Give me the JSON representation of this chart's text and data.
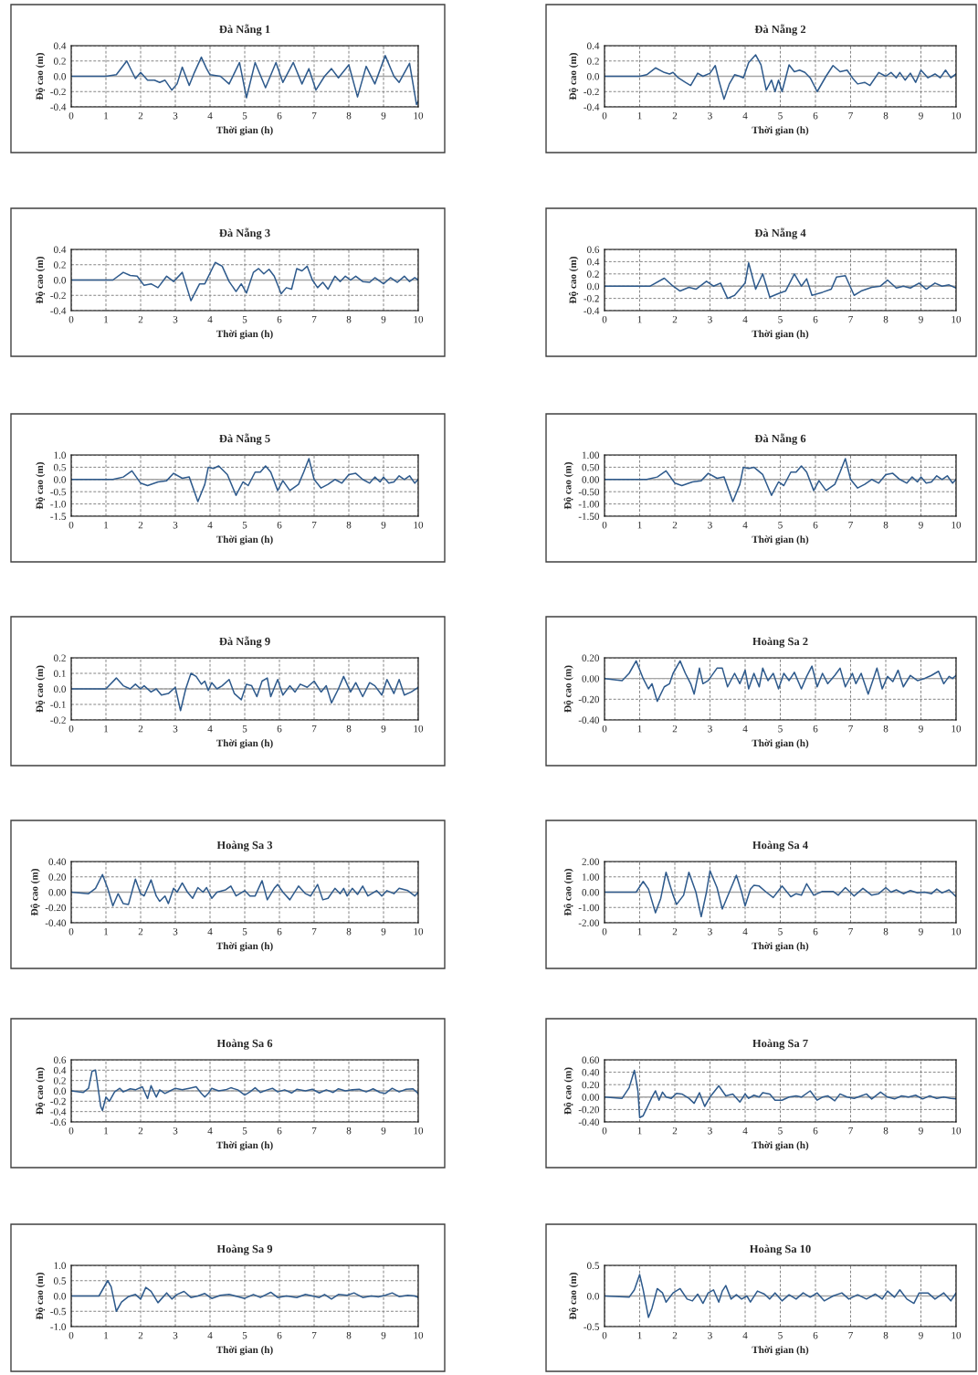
{
  "chart_data": [
    {
      "type": "line",
      "title": "Đà Nẵng 1",
      "xlabel": "Thời gian (h)",
      "ylabel": "Độ cao (m)",
      "xlim": [
        0,
        10
      ],
      "xticks": [
        0,
        1,
        2,
        3,
        4,
        5,
        6,
        7,
        8,
        9,
        10
      ],
      "ylim": [
        -0.4,
        0.4
      ],
      "yticks": [
        -0.4,
        -0.2,
        {
          "value": 0,
          "label": "0.0"
        },
        0.2,
        0.4
      ],
      "grid": true,
      "ref_lines": [
        {
          "axis": "y",
          "value": 0,
          "color": "#a6a6a6"
        }
      ],
      "series": [
        {
          "color": "#2e5a8c",
          "x": [
            0,
            1,
            1.3,
            1.6,
            1.85,
            2.0,
            2.2,
            2.4,
            2.55,
            2.7,
            2.9,
            3.05,
            3.2,
            3.4,
            3.55,
            3.75,
            3.9,
            4.0,
            4.3,
            4.55,
            4.85,
            5.05,
            5.3,
            5.6,
            5.9,
            6.1,
            6.4,
            6.65,
            6.85,
            7.05,
            7.3,
            7.5,
            7.7,
            8.0,
            8.25,
            8.5,
            8.75,
            9.05,
            9.3,
            9.45,
            9.75,
            9.95,
            10
          ],
          "values": [
            0,
            0,
            0.02,
            0.2,
            -0.03,
            0.05,
            -0.05,
            -0.05,
            -0.08,
            -0.05,
            -0.18,
            -0.1,
            0.12,
            -0.12,
            0.05,
            0.25,
            0.1,
            0.02,
            0.0,
            -0.1,
            0.18,
            -0.28,
            0.18,
            -0.15,
            0.18,
            -0.08,
            0.18,
            -0.1,
            0.1,
            -0.18,
            0.0,
            0.1,
            -0.02,
            0.15,
            -0.27,
            0.13,
            -0.1,
            0.27,
            0.0,
            -0.08,
            0.17,
            -0.37,
            -0.33
          ]
        }
      ]
    },
    {
      "type": "line",
      "title": "Đà Nẵng 2",
      "xlabel": "Thời gian (h)",
      "ylabel": "Độ cao (m)",
      "xlim": [
        0,
        10
      ],
      "xticks": [
        0,
        1,
        2,
        3,
        4,
        5,
        6,
        7,
        8,
        9,
        10
      ],
      "ylim": [
        -0.4,
        0.4
      ],
      "yticks": [
        -0.4,
        -0.2,
        {
          "value": 0,
          "label": "0.0"
        },
        0.2,
        0.4
      ],
      "grid": true,
      "ref_lines": [
        {
          "axis": "y",
          "value": 0,
          "color": "#a6a6a6"
        }
      ],
      "series": [
        {
          "color": "#2e5a8c",
          "x": [
            0,
            1,
            1.2,
            1.45,
            1.7,
            1.85,
            1.95,
            2.1,
            2.3,
            2.45,
            2.65,
            2.8,
            3.0,
            3.15,
            3.25,
            3.4,
            3.55,
            3.7,
            3.85,
            3.95,
            4.1,
            4.3,
            4.45,
            4.6,
            4.75,
            4.85,
            4.95,
            5.05,
            5.25,
            5.4,
            5.55,
            5.7,
            5.85,
            6.05,
            6.3,
            6.5,
            6.7,
            6.9,
            7.05,
            7.2,
            7.4,
            7.55,
            7.8,
            8.0,
            8.15,
            8.3,
            8.4,
            8.55,
            8.7,
            8.85,
            9.0,
            9.2,
            9.4,
            9.55,
            9.7,
            9.85,
            10
          ],
          "values": [
            0,
            0,
            0.02,
            0.11,
            0.05,
            0.03,
            0.05,
            -0.02,
            -0.08,
            -0.12,
            0.04,
            0.0,
            0.04,
            0.14,
            -0.05,
            -0.3,
            -0.1,
            0.02,
            0.0,
            -0.02,
            0.18,
            0.28,
            0.15,
            -0.18,
            -0.05,
            -0.2,
            -0.05,
            -0.2,
            0.15,
            0.06,
            0.08,
            0.05,
            -0.02,
            -0.2,
            0.0,
            0.14,
            0.06,
            0.08,
            -0.02,
            -0.1,
            -0.08,
            -0.12,
            0.05,
            0.0,
            0.05,
            -0.02,
            0.05,
            -0.05,
            0.04,
            -0.08,
            0.08,
            -0.02,
            0.03,
            -0.02,
            0.08,
            -0.02,
            0.03
          ]
        }
      ]
    },
    {
      "type": "line",
      "title": "Đà Nẵng 3",
      "xlabel": "Thời gian (h)",
      "ylabel": "Độ cao (m)",
      "xlim": [
        0,
        10
      ],
      "xticks": [
        0,
        1,
        2,
        3,
        4,
        5,
        6,
        7,
        8,
        9,
        10
      ],
      "ylim": [
        -0.4,
        0.4
      ],
      "yticks": [
        -0.4,
        -0.2,
        {
          "value": 0,
          "label": "0.0"
        },
        0.2,
        0.4
      ],
      "grid": true,
      "ref_lines": [
        {
          "axis": "y",
          "value": 0,
          "color": "#a6a6a6"
        }
      ],
      "series": [
        {
          "color": "#2e5a8c",
          "x": [
            0,
            1.2,
            1.5,
            1.7,
            1.9,
            2.1,
            2.3,
            2.5,
            2.75,
            2.95,
            3.2,
            3.45,
            3.7,
            3.85,
            4.15,
            4.35,
            4.55,
            4.75,
            4.9,
            5.05,
            5.25,
            5.4,
            5.55,
            5.7,
            5.85,
            6.05,
            6.2,
            6.35,
            6.5,
            6.65,
            6.8,
            6.95,
            7.1,
            7.25,
            7.4,
            7.6,
            7.75,
            7.9,
            8.05,
            8.2,
            8.4,
            8.6,
            8.75,
            9.0,
            9.2,
            9.4,
            9.6,
            9.75,
            9.9,
            10
          ],
          "values": [
            0,
            0,
            0.1,
            0.06,
            0.05,
            -0.07,
            -0.05,
            -0.1,
            0.05,
            -0.02,
            0.1,
            -0.27,
            -0.05,
            -0.05,
            0.23,
            0.18,
            -0.02,
            -0.15,
            -0.05,
            -0.17,
            0.1,
            0.15,
            0.08,
            0.14,
            0.05,
            -0.18,
            -0.1,
            -0.12,
            0.15,
            0.12,
            0.18,
            0.0,
            -0.1,
            -0.03,
            -0.12,
            0.05,
            -0.02,
            0.05,
            0.0,
            0.05,
            -0.02,
            -0.03,
            0.03,
            -0.05,
            0.03,
            -0.03,
            0.05,
            -0.02,
            0.03,
            0.0
          ]
        }
      ]
    },
    {
      "type": "line",
      "title": "Đà Nẵng 4",
      "xlabel": "Thời gian (h)",
      "ylabel": "Độ cao (m)",
      "xlim": [
        0,
        10
      ],
      "xticks": [
        0,
        1,
        2,
        3,
        4,
        5,
        6,
        7,
        8,
        9,
        10
      ],
      "ylim": [
        -0.4,
        0.6
      ],
      "yticks": [
        -0.4,
        -0.2,
        {
          "value": 0,
          "label": "0.0"
        },
        0.2,
        0.4,
        0.6
      ],
      "grid": true,
      "ref_lines": [
        {
          "axis": "y",
          "value": 0,
          "color": "#a6a6a6"
        }
      ],
      "series": [
        {
          "color": "#2e5a8c",
          "x": [
            0,
            1.3,
            1.7,
            1.95,
            2.15,
            2.4,
            2.6,
            2.9,
            3.1,
            3.3,
            3.5,
            3.7,
            3.85,
            4.0,
            4.1,
            4.3,
            4.5,
            4.7,
            4.95,
            5.15,
            5.4,
            5.6,
            5.75,
            5.9,
            6.2,
            6.45,
            6.6,
            6.85,
            7.1,
            7.3,
            7.6,
            7.85,
            8.05,
            8.3,
            8.5,
            8.7,
            8.95,
            9.15,
            9.4,
            9.6,
            9.8,
            10
          ],
          "values": [
            0,
            0.0,
            0.13,
            0.0,
            -0.08,
            -0.02,
            -0.05,
            0.08,
            0.0,
            0.05,
            -0.2,
            -0.15,
            -0.05,
            0.05,
            0.38,
            -0.05,
            0.2,
            -0.18,
            -0.12,
            -0.08,
            0.2,
            0.0,
            0.12,
            -0.15,
            -0.1,
            -0.05,
            0.15,
            0.17,
            -0.15,
            -0.08,
            -0.02,
            0.0,
            0.1,
            -0.03,
            0.0,
            -0.03,
            0.05,
            -0.05,
            0.05,
            0.0,
            0.02,
            -0.03
          ]
        }
      ]
    },
    {
      "type": "line",
      "title": "Đà Nẵng 5",
      "xlabel": "Thời gian (h)",
      "ylabel": "Độ cao (m)",
      "xlim": [
        0,
        10
      ],
      "xticks": [
        0,
        1,
        2,
        3,
        4,
        5,
        6,
        7,
        8,
        9,
        10
      ],
      "ylim": [
        -1.5,
        1.0
      ],
      "yticks": [
        -1.5,
        {
          "value": -1,
          "label": "-1.0"
        },
        -0.5,
        {
          "value": 0,
          "label": "0.0"
        },
        0.5,
        {
          "value": 1,
          "label": "1.0"
        }
      ],
      "grid": true,
      "ref_lines": [
        {
          "axis": "y",
          "value": 0,
          "color": "#a6a6a6"
        }
      ],
      "series": [
        {
          "color": "#2e5a8c",
          "x": [
            0,
            1.2,
            1.5,
            1.75,
            2.0,
            2.2,
            2.5,
            2.75,
            2.95,
            3.2,
            3.4,
            3.65,
            3.85,
            3.95,
            4.1,
            4.25,
            4.5,
            4.75,
            4.95,
            5.1,
            5.3,
            5.45,
            5.6,
            5.75,
            5.95,
            6.1,
            6.3,
            6.55,
            6.7,
            6.85,
            7.0,
            7.2,
            7.4,
            7.6,
            7.8,
            8.0,
            8.2,
            8.4,
            8.6,
            8.75,
            8.9,
            9.0,
            9.15,
            9.3,
            9.45,
            9.6,
            9.75,
            9.9,
            10
          ],
          "values": [
            0,
            0,
            0.1,
            0.35,
            -0.15,
            -0.25,
            -0.1,
            -0.05,
            0.25,
            0.05,
            0.1,
            -0.9,
            -0.2,
            0.5,
            0.45,
            0.55,
            0.2,
            -0.65,
            -0.1,
            -0.25,
            0.3,
            0.3,
            0.55,
            0.3,
            -0.45,
            -0.05,
            -0.45,
            -0.2,
            0.3,
            0.85,
            0.0,
            -0.35,
            -0.2,
            0.0,
            -0.15,
            0.2,
            0.25,
            0.0,
            -0.15,
            0.1,
            -0.1,
            0.1,
            -0.15,
            -0.1,
            0.15,
            0.0,
            0.15,
            -0.15,
            0.0
          ]
        }
      ]
    },
    {
      "type": "line",
      "title": "Đà Nẵng 6",
      "xlabel": "Thời gian (h)",
      "ylabel": "Độ cao (m)",
      "xlim": [
        0,
        10
      ],
      "xticks": [
        0,
        1,
        2,
        3,
        4,
        5,
        6,
        7,
        8,
        9,
        10
      ],
      "ylim": [
        -1.5,
        1.0
      ],
      "yticks": [
        {
          "value": -1.5,
          "label": "-1.50"
        },
        {
          "value": -1,
          "label": "-1.00"
        },
        {
          "value": -0.5,
          "label": "-0.50"
        },
        {
          "value": 0,
          "label": "0.00"
        },
        {
          "value": 0.5,
          "label": "0.50"
        },
        {
          "value": 1,
          "label": "1.00"
        }
      ],
      "grid": true,
      "ref_lines": [
        {
          "axis": "y",
          "value": 0,
          "color": "#a6a6a6"
        }
      ],
      "series": [
        {
          "color": "#2e5a8c",
          "x": [
            0,
            1.2,
            1.5,
            1.75,
            2.0,
            2.2,
            2.5,
            2.75,
            2.95,
            3.2,
            3.4,
            3.65,
            3.85,
            3.95,
            4.1,
            4.25,
            4.5,
            4.75,
            4.95,
            5.1,
            5.3,
            5.45,
            5.6,
            5.75,
            5.95,
            6.1,
            6.3,
            6.55,
            6.7,
            6.85,
            7.0,
            7.2,
            7.4,
            7.6,
            7.8,
            8.0,
            8.2,
            8.4,
            8.6,
            8.75,
            8.9,
            9.0,
            9.15,
            9.3,
            9.45,
            9.6,
            9.75,
            9.9,
            10
          ],
          "values": [
            0,
            0,
            0.1,
            0.35,
            -0.15,
            -0.25,
            -0.1,
            -0.05,
            0.25,
            0.05,
            0.1,
            -0.9,
            -0.2,
            0.5,
            0.45,
            0.5,
            0.2,
            -0.65,
            -0.1,
            -0.25,
            0.3,
            0.3,
            0.55,
            0.3,
            -0.45,
            -0.05,
            -0.45,
            -0.2,
            0.3,
            0.85,
            0.0,
            -0.35,
            -0.2,
            0.0,
            -0.15,
            0.2,
            0.25,
            0.0,
            -0.15,
            0.1,
            -0.1,
            0.1,
            -0.15,
            -0.1,
            0.15,
            0.0,
            0.15,
            -0.15,
            0.0
          ]
        }
      ]
    },
    {
      "type": "line",
      "title": "Đà Nẵng 9",
      "xlabel": "Thời gian (h)",
      "ylabel": "Độ cao (m)",
      "xlim": [
        0,
        10
      ],
      "xticks": [
        0,
        1,
        2,
        3,
        4,
        5,
        6,
        7,
        8,
        9,
        10
      ],
      "ylim": [
        -0.2,
        0.2
      ],
      "yticks": [
        -0.2,
        -0.1,
        {
          "value": 0,
          "label": "0.0"
        },
        0.1,
        0.2
      ],
      "grid": true,
      "ref_lines": [
        {
          "axis": "y",
          "value": 0,
          "color": "#a6a6a6"
        }
      ],
      "series": [
        {
          "color": "#2e5a8c",
          "x": [
            0,
            1.0,
            1.3,
            1.5,
            1.7,
            1.85,
            2.0,
            2.1,
            2.3,
            2.45,
            2.6,
            2.8,
            3.0,
            3.15,
            3.3,
            3.45,
            3.6,
            3.75,
            3.85,
            3.95,
            4.05,
            4.2,
            4.35,
            4.55,
            4.7,
            4.9,
            5.05,
            5.2,
            5.35,
            5.5,
            5.65,
            5.75,
            5.95,
            6.1,
            6.3,
            6.45,
            6.6,
            6.8,
            7.0,
            7.2,
            7.35,
            7.5,
            7.7,
            7.85,
            8.05,
            8.2,
            8.4,
            8.6,
            8.75,
            8.95,
            9.1,
            9.3,
            9.45,
            9.6,
            9.8,
            10
          ],
          "values": [
            0,
            0,
            0.07,
            0.02,
            0.0,
            0.03,
            0.0,
            0.02,
            -0.02,
            0.0,
            -0.04,
            -0.03,
            0.01,
            -0.14,
            0.0,
            0.1,
            0.08,
            0.03,
            0.05,
            -0.01,
            0.04,
            0.0,
            0.02,
            0.06,
            -0.03,
            -0.07,
            0.03,
            0.02,
            -0.05,
            0.05,
            0.07,
            -0.05,
            0.06,
            -0.04,
            0.02,
            -0.02,
            0.03,
            0.01,
            0.05,
            -0.02,
            0.02,
            -0.09,
            0.0,
            0.08,
            -0.02,
            0.04,
            -0.05,
            0.04,
            0.02,
            -0.04,
            0.06,
            -0.03,
            0.06,
            -0.04,
            -0.02,
            0.01
          ]
        }
      ]
    },
    {
      "type": "line",
      "title": "Hoàng Sa 2",
      "xlabel": "Thời gian (h)",
      "ylabel": "Độ cao (m)",
      "xlim": [
        0,
        10
      ],
      "xticks": [
        0,
        1,
        2,
        3,
        4,
        5,
        6,
        7,
        8,
        9,
        10
      ],
      "ylim": [
        -0.4,
        0.2
      ],
      "yticks": [
        {
          "value": -0.4,
          "label": "-0.40"
        },
        {
          "value": -0.2,
          "label": "-0.20"
        },
        {
          "value": 0,
          "label": "0.00"
        },
        {
          "value": 0.2,
          "label": "0.20"
        }
      ],
      "grid": true,
      "ref_lines": [
        {
          "axis": "y",
          "value": 0,
          "color": "#a6a6a6"
        }
      ],
      "series": [
        {
          "color": "#2e5a8c",
          "x": [
            0,
            0.5,
            0.7,
            0.9,
            1.1,
            1.25,
            1.35,
            1.5,
            1.7,
            1.85,
            1.95,
            2.15,
            2.3,
            2.45,
            2.55,
            2.7,
            2.8,
            2.95,
            3.2,
            3.35,
            3.5,
            3.7,
            3.85,
            4.0,
            4.1,
            4.25,
            4.4,
            4.5,
            4.65,
            4.8,
            4.95,
            5.1,
            5.25,
            5.4,
            5.6,
            5.75,
            5.9,
            6.05,
            6.2,
            6.35,
            6.55,
            6.7,
            6.85,
            7.05,
            7.15,
            7.3,
            7.5,
            7.65,
            7.75,
            7.9,
            8.05,
            8.2,
            8.35,
            8.5,
            8.7,
            8.9,
            9.1,
            9.3,
            9.5,
            9.65,
            9.8,
            9.9,
            10
          ],
          "values": [
            0,
            -0.02,
            0.05,
            0.17,
            0.0,
            -0.1,
            -0.05,
            -0.22,
            -0.08,
            -0.05,
            0.05,
            0.17,
            0.05,
            -0.05,
            -0.15,
            0.1,
            -0.05,
            -0.02,
            0.1,
            0.1,
            -0.08,
            0.05,
            -0.05,
            0.08,
            -0.1,
            0.05,
            -0.08,
            0.1,
            -0.02,
            0.05,
            -0.1,
            0.05,
            -0.02,
            0.06,
            -0.1,
            0.02,
            0.12,
            -0.08,
            0.05,
            -0.05,
            0.03,
            0.1,
            -0.08,
            0.05,
            -0.05,
            0.05,
            -0.15,
            0.0,
            0.1,
            -0.1,
            0.02,
            -0.03,
            0.08,
            -0.08,
            0.03,
            -0.02,
            0.0,
            0.03,
            0.07,
            -0.05,
            0.02,
            0.0,
            0.03
          ]
        }
      ]
    },
    {
      "type": "line",
      "title": "Hoàng Sa 3",
      "xlabel": "Thời gian (h)",
      "ylabel": "Độ cao (m)",
      "xlim": [
        0,
        10
      ],
      "xticks": [
        0,
        1,
        2,
        3,
        4,
        5,
        6,
        7,
        8,
        9,
        10
      ],
      "ylim": [
        -0.4,
        0.4
      ],
      "yticks": [
        {
          "value": -0.4,
          "label": "-0.40"
        },
        {
          "value": -0.2,
          "label": "-0.20"
        },
        {
          "value": 0,
          "label": "0.00"
        },
        {
          "value": 0.2,
          "label": "0.20"
        },
        {
          "value": 0.4,
          "label": "0.40"
        }
      ],
      "grid": true,
      "ref_lines": [
        {
          "axis": "y",
          "value": 0,
          "color": "#a6a6a6"
        }
      ],
      "series": [
        {
          "color": "#2e5a8c",
          "x": [
            0,
            0.5,
            0.7,
            0.9,
            1.05,
            1.2,
            1.35,
            1.5,
            1.65,
            1.85,
            2.0,
            2.1,
            2.3,
            2.45,
            2.55,
            2.7,
            2.8,
            2.95,
            3.05,
            3.2,
            3.35,
            3.5,
            3.65,
            3.8,
            3.9,
            4.05,
            4.2,
            4.45,
            4.6,
            4.75,
            5.0,
            5.15,
            5.3,
            5.5,
            5.65,
            5.85,
            5.95,
            6.1,
            6.3,
            6.55,
            6.75,
            6.9,
            7.1,
            7.25,
            7.4,
            7.6,
            7.75,
            7.85,
            7.95,
            8.1,
            8.25,
            8.4,
            8.55,
            8.8,
            8.95,
            9.1,
            9.3,
            9.45,
            9.7,
            9.9,
            10
          ],
          "values": [
            0,
            -0.02,
            0.05,
            0.23,
            0.05,
            -0.18,
            -0.02,
            -0.15,
            -0.16,
            0.17,
            -0.02,
            -0.05,
            0.16,
            -0.05,
            -0.12,
            -0.05,
            -0.15,
            0.05,
            0.0,
            0.12,
            0.0,
            -0.08,
            0.06,
            0.0,
            0.06,
            -0.08,
            0.0,
            0.03,
            0.08,
            -0.05,
            0.02,
            -0.05,
            -0.05,
            0.15,
            -0.1,
            0.05,
            0.1,
            0.0,
            -0.1,
            0.08,
            -0.02,
            -0.05,
            0.1,
            -0.1,
            -0.08,
            0.05,
            -0.02,
            0.05,
            -0.05,
            0.05,
            -0.03,
            0.08,
            -0.05,
            0.02,
            -0.05,
            0.02,
            -0.02,
            0.05,
            0.02,
            -0.05,
            0.0
          ]
        }
      ]
    },
    {
      "type": "line",
      "title": "Hoàng Sa 4",
      "xlabel": "Thời gian (h)",
      "ylabel": "Độ cao (m)",
      "xlim": [
        0,
        10
      ],
      "xticks": [
        0,
        1,
        2,
        3,
        4,
        5,
        6,
        7,
        8,
        9,
        10
      ],
      "ylim": [
        -2,
        2
      ],
      "yticks": [
        {
          "value": -2,
          "label": "-2.00"
        },
        {
          "value": -1,
          "label": "-1.00"
        },
        {
          "value": 0,
          "label": "0.00"
        },
        {
          "value": 1,
          "label": "1.00"
        },
        {
          "value": 2,
          "label": "2.00"
        }
      ],
      "grid": true,
      "ref_lines": [
        {
          "axis": "y",
          "value": 0,
          "color": "#a6a6a6"
        }
      ],
      "series": [
        {
          "color": "#2e5a8c",
          "x": [
            0,
            0.9,
            1.1,
            1.25,
            1.45,
            1.6,
            1.75,
            1.95,
            2.05,
            2.25,
            2.4,
            2.6,
            2.75,
            2.9,
            3.0,
            3.2,
            3.35,
            3.55,
            3.75,
            3.9,
            4.0,
            4.15,
            4.25,
            4.4,
            4.6,
            4.8,
            5.05,
            5.3,
            5.45,
            5.6,
            5.75,
            5.95,
            6.2,
            6.5,
            6.65,
            6.85,
            7.1,
            7.35,
            7.6,
            7.8,
            8.0,
            8.15,
            8.3,
            8.5,
            8.7,
            8.9,
            9.1,
            9.3,
            9.45,
            9.6,
            9.8,
            10
          ],
          "values": [
            0,
            0.0,
            0.7,
            0.2,
            -1.35,
            -0.4,
            1.3,
            -0.2,
            -0.8,
            -0.2,
            1.3,
            0.0,
            -1.6,
            0.0,
            1.4,
            0.3,
            -1.1,
            0.0,
            1.1,
            0.0,
            -0.9,
            0.2,
            0.45,
            0.4,
            0.0,
            -0.35,
            0.4,
            -0.3,
            -0.1,
            -0.2,
            0.55,
            -0.2,
            0.05,
            0.05,
            -0.2,
            0.3,
            -0.25,
            0.25,
            -0.2,
            -0.1,
            0.3,
            0.0,
            0.15,
            -0.1,
            0.1,
            -0.05,
            0.0,
            -0.1,
            0.2,
            -0.05,
            0.15,
            -0.3
          ]
        }
      ]
    },
    {
      "type": "line",
      "title": "Hoàng Sa 6",
      "xlabel": "Thời gian (h)",
      "ylabel": "Độ cao (m)",
      "xlim": [
        0,
        10
      ],
      "xticks": [
        0,
        1,
        2,
        3,
        4,
        5,
        6,
        7,
        8,
        9,
        10
      ],
      "ylim": [
        -0.6,
        0.6
      ],
      "yticks": [
        -0.6,
        -0.4,
        -0.2,
        {
          "value": 0,
          "label": "0.0"
        },
        0.2,
        0.4,
        0.6
      ],
      "grid": true,
      "ref_lines": [
        {
          "axis": "y",
          "value": 0,
          "color": "#a6a6a6"
        }
      ],
      "series": [
        {
          "color": "#2e5a8c",
          "x": [
            0,
            0.35,
            0.5,
            0.6,
            0.7,
            0.85,
            0.9,
            1.0,
            1.1,
            1.25,
            1.4,
            1.5,
            1.7,
            1.85,
            2.05,
            2.2,
            2.3,
            2.45,
            2.55,
            2.7,
            2.85,
            3.0,
            3.2,
            3.4,
            3.6,
            3.75,
            3.85,
            3.95,
            4.05,
            4.25,
            4.45,
            4.6,
            4.8,
            5.0,
            5.15,
            5.3,
            5.45,
            5.65,
            5.8,
            5.95,
            6.15,
            6.35,
            6.5,
            6.75,
            6.95,
            7.15,
            7.35,
            7.55,
            7.7,
            7.9,
            8.1,
            8.3,
            8.5,
            8.7,
            8.9,
            9.05,
            9.25,
            9.45,
            9.65,
            9.85,
            10
          ],
          "values": [
            0,
            -0.03,
            0.05,
            0.38,
            0.4,
            -0.3,
            -0.38,
            -0.12,
            -0.2,
            -0.02,
            0.05,
            -0.02,
            0.04,
            0.02,
            0.08,
            -0.15,
            0.1,
            -0.12,
            0.02,
            -0.05,
            0.0,
            0.05,
            0.02,
            0.05,
            0.08,
            -0.05,
            -0.12,
            -0.05,
            0.05,
            0.0,
            0.02,
            0.06,
            0.02,
            -0.08,
            -0.02,
            0.06,
            -0.03,
            0.02,
            0.05,
            -0.02,
            0.02,
            -0.04,
            0.03,
            0.0,
            0.03,
            -0.04,
            0.02,
            -0.03,
            0.04,
            0.0,
            0.02,
            0.03,
            -0.02,
            0.04,
            -0.03,
            -0.05,
            0.05,
            -0.02,
            0.03,
            0.04,
            -0.05
          ]
        }
      ]
    },
    {
      "type": "line",
      "title": "Hoàng Sa 7",
      "xlabel": "Thời gian (h)",
      "ylabel": "Độ cao (m)",
      "xlim": [
        0,
        10
      ],
      "xticks": [
        0,
        1,
        2,
        3,
        4,
        5,
        6,
        7,
        8,
        9,
        10
      ],
      "ylim": [
        -0.4,
        0.6
      ],
      "yticks": [
        {
          "value": -0.4,
          "label": "-0.40"
        },
        {
          "value": -0.2,
          "label": "-0.20"
        },
        {
          "value": 0,
          "label": "0.00"
        },
        {
          "value": 0.2,
          "label": "0.20"
        },
        {
          "value": 0.4,
          "label": "0.40"
        },
        {
          "value": 0.6,
          "label": "0.60"
        }
      ],
      "grid": true,
      "ref_lines": [
        {
          "axis": "y",
          "value": 0,
          "color": "#a6a6a6"
        }
      ],
      "series": [
        {
          "color": "#2e5a8c",
          "x": [
            0,
            0.5,
            0.7,
            0.85,
            0.95,
            1.0,
            1.1,
            1.25,
            1.35,
            1.45,
            1.55,
            1.65,
            1.75,
            1.9,
            2.05,
            2.2,
            2.4,
            2.55,
            2.7,
            2.85,
            3.0,
            3.25,
            3.45,
            3.65,
            3.85,
            4.0,
            4.1,
            4.25,
            4.4,
            4.5,
            4.7,
            4.85,
            5.05,
            5.25,
            5.45,
            5.6,
            5.85,
            6.05,
            6.2,
            6.35,
            6.55,
            6.7,
            6.9,
            7.1,
            7.3,
            7.45,
            7.6,
            7.85,
            8.05,
            8.25,
            8.45,
            8.65,
            8.85,
            9.05,
            9.25,
            9.45,
            9.65,
            9.85,
            10
          ],
          "values": [
            0,
            -0.02,
            0.15,
            0.43,
            0.1,
            -0.33,
            -0.3,
            -0.12,
            0.0,
            0.1,
            -0.05,
            0.08,
            0.0,
            -0.02,
            0.06,
            0.05,
            -0.02,
            -0.1,
            0.07,
            -0.15,
            0.0,
            0.18,
            0.02,
            0.05,
            -0.08,
            0.05,
            -0.02,
            0.03,
            0.0,
            0.07,
            0.05,
            -0.05,
            -0.05,
            0.0,
            0.02,
            0.0,
            0.1,
            -0.05,
            0.0,
            0.02,
            -0.06,
            0.05,
            0.0,
            -0.02,
            0.02,
            0.05,
            -0.03,
            0.08,
            0.0,
            -0.03,
            0.02,
            0.0,
            0.03,
            -0.03,
            0.02,
            -0.02,
            0.0,
            -0.02,
            -0.03
          ]
        }
      ]
    },
    {
      "type": "line",
      "title": "Hoàng Sa 9",
      "xlabel": "Thời gian (h)",
      "ylabel": "Độ cao (m)",
      "xlim": [
        0,
        10
      ],
      "xticks": [
        0,
        1,
        2,
        3,
        4,
        5,
        6,
        7,
        8,
        9,
        10
      ],
      "ylim": [
        -1,
        1
      ],
      "yticks": [
        {
          "value": -1,
          "label": "-1.0"
        },
        -0.5,
        {
          "value": 0,
          "label": "0.0"
        },
        0.5,
        {
          "value": 1,
          "label": "1.0"
        }
      ],
      "grid": true,
      "ref_lines": [
        {
          "axis": "y",
          "value": 0,
          "color": "#a6a6a6"
        }
      ],
      "series": [
        {
          "color": "#2e5a8c",
          "x": [
            0,
            0.8,
            1.05,
            1.15,
            1.3,
            1.45,
            1.65,
            1.85,
            2.0,
            2.15,
            2.3,
            2.5,
            2.75,
            2.9,
            3.05,
            3.25,
            3.45,
            3.65,
            3.85,
            4.05,
            4.3,
            4.55,
            4.8,
            5.0,
            5.25,
            5.45,
            5.75,
            5.95,
            6.2,
            6.5,
            6.75,
            6.95,
            7.15,
            7.3,
            7.5,
            7.7,
            7.95,
            8.15,
            8.4,
            8.65,
            8.85,
            9.05,
            9.25,
            9.45,
            9.7,
            9.9,
            10
          ],
          "values": [
            0,
            0.0,
            0.5,
            0.3,
            -0.5,
            -0.2,
            -0.02,
            0.05,
            -0.1,
            0.28,
            0.15,
            -0.22,
            0.1,
            -0.1,
            0.05,
            0.15,
            -0.05,
            0.0,
            0.08,
            -0.08,
            0.02,
            0.05,
            -0.02,
            -0.08,
            0.05,
            -0.05,
            0.12,
            -0.05,
            0.0,
            -0.05,
            0.05,
            0.0,
            -0.05,
            0.05,
            -0.1,
            0.05,
            0.02,
            0.1,
            -0.05,
            0.0,
            -0.03,
            0.02,
            0.1,
            -0.02,
            0.02,
            0.0,
            -0.05
          ]
        }
      ]
    },
    {
      "type": "line",
      "title": "Hoàng Sa 10",
      "xlabel": "Thời gian (h)",
      "ylabel": "Độ cao (m)",
      "xlim": [
        0,
        10
      ],
      "xticks": [
        0,
        1,
        2,
        3,
        4,
        5,
        6,
        7,
        8,
        9,
        10
      ],
      "ylim": [
        -0.5,
        0.5
      ],
      "yticks": [
        -0.5,
        {
          "value": 0,
          "label": "0.0"
        },
        0.5
      ],
      "grid": true,
      "ref_lines": [
        {
          "axis": "y",
          "value": 0,
          "color": "#a6a6a6"
        }
      ],
      "series": [
        {
          "color": "#2e5a8c",
          "x": [
            0,
            0.7,
            0.85,
            1.0,
            1.1,
            1.25,
            1.35,
            1.5,
            1.65,
            1.75,
            1.95,
            2.15,
            2.35,
            2.5,
            2.65,
            2.8,
            2.95,
            3.1,
            3.25,
            3.35,
            3.45,
            3.6,
            3.75,
            3.9,
            4.05,
            4.15,
            4.35,
            4.55,
            4.7,
            4.85,
            5.05,
            5.25,
            5.45,
            5.65,
            5.85,
            6.05,
            6.25,
            6.5,
            6.75,
            6.95,
            7.2,
            7.45,
            7.7,
            7.9,
            8.05,
            8.25,
            8.4,
            8.6,
            8.8,
            8.95,
            9.2,
            9.4,
            9.65,
            9.85,
            10
          ],
          "values": [
            0,
            -0.02,
            0.1,
            0.35,
            0.1,
            -0.35,
            -0.2,
            0.12,
            0.05,
            -0.1,
            0.05,
            0.12,
            -0.05,
            -0.08,
            0.03,
            -0.12,
            0.05,
            0.1,
            -0.1,
            0.08,
            0.17,
            -0.05,
            0.02,
            -0.05,
            0.0,
            -0.1,
            0.08,
            0.03,
            -0.05,
            0.05,
            -0.08,
            0.02,
            -0.05,
            0.05,
            -0.02,
            0.05,
            -0.08,
            0.0,
            0.05,
            -0.05,
            0.02,
            -0.05,
            0.03,
            -0.05,
            0.08,
            -0.02,
            0.1,
            -0.05,
            -0.12,
            0.05,
            0.05,
            -0.05,
            0.05,
            -0.08,
            0.05
          ]
        }
      ]
    }
  ]
}
